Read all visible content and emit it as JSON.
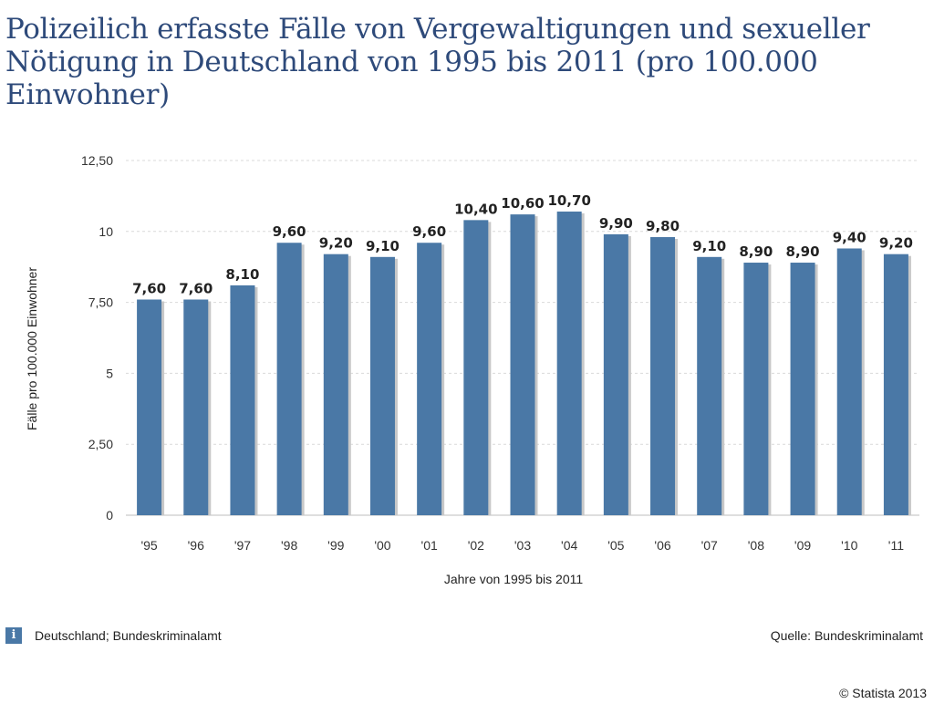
{
  "title_lines": [
    "Polizeilich erfasste Fälle von Vergewaltigungen und sexueller",
    "Nötigung in Deutschland von 1995 bis 2011 (pro 100.000",
    "Einwohner)"
  ],
  "chart_data": {
    "type": "bar",
    "title": "Polizeilich erfasste Fälle von Vergewaltigungen und sexueller Nötigung in Deutschland von 1995 bis 2011 (pro 100.000 Einwohner)",
    "categories": [
      "'95",
      "'96",
      "'97",
      "'98",
      "'99",
      "'00",
      "'01",
      "'02",
      "'03",
      "'04",
      "'05",
      "'06",
      "'07",
      "'08",
      "'09",
      "'10",
      "'11"
    ],
    "values": [
      7.6,
      7.6,
      8.1,
      9.6,
      9.2,
      9.1,
      9.6,
      10.4,
      10.6,
      10.7,
      9.9,
      9.8,
      9.1,
      8.9,
      8.9,
      9.4,
      9.2
    ],
    "data_labels": [
      "7,60",
      "7,60",
      "8,10",
      "9,60",
      "9,20",
      "9,10",
      "9,60",
      "10,40",
      "10,60",
      "10,70",
      "9,90",
      "9,80",
      "9,10",
      "8,90",
      "8,90",
      "9,40",
      "9,20"
    ],
    "ylim": [
      0,
      12.5
    ],
    "yticks": [
      0,
      2.5,
      5,
      7.5,
      10,
      12.5
    ],
    "ytick_labels": [
      "0",
      "2,50",
      "5",
      "7,50",
      "10",
      "12,50"
    ],
    "xlabel": "Jahre von 1995 bis 2011",
    "ylabel": "Fälle pro 100.000 Einwohner",
    "bar_color": "#4a78a6",
    "shadow_color": "#c8c8c8",
    "grid": true
  },
  "footer": {
    "info_icon_glyph": "i",
    "info_text": "Deutschland; Bundeskriminalamt",
    "source_text": "Quelle: Bundeskriminalamt",
    "copyright": "© Statista 2013"
  }
}
